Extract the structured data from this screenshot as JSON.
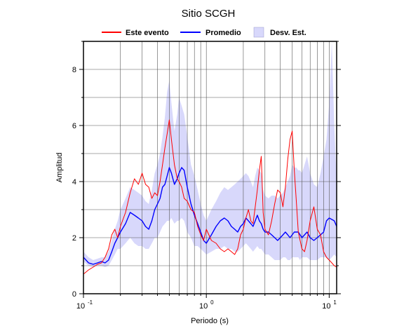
{
  "chart_data": {
    "type": "line",
    "title": "Sitio SCGH",
    "xlabel": "Periodo (s)",
    "ylabel": "Amplitud",
    "x_scale": "log",
    "xlim": [
      0.1,
      11.5
    ],
    "ylim": [
      0,
      9
    ],
    "grid": true,
    "legend_position": "top",
    "x_ticks": [
      {
        "base": "10",
        "exp": "-1",
        "value": 0.1
      },
      {
        "base": "10",
        "exp": "0",
        "value": 1
      },
      {
        "base": "10",
        "exp": "1",
        "value": 10
      }
    ],
    "y_ticks": [
      "0",
      "2",
      "4",
      "6",
      "8"
    ],
    "series": [
      {
        "name": "Este evento",
        "color": "#ff0000",
        "x": [
          0.1,
          0.11,
          0.12,
          0.13,
          0.14,
          0.15,
          0.16,
          0.17,
          0.18,
          0.19,
          0.2,
          0.22,
          0.24,
          0.26,
          0.28,
          0.3,
          0.32,
          0.34,
          0.36,
          0.38,
          0.4,
          0.42,
          0.44,
          0.46,
          0.48,
          0.5,
          0.52,
          0.55,
          0.58,
          0.6,
          0.63,
          0.66,
          0.7,
          0.75,
          0.8,
          0.85,
          0.9,
          0.95,
          1.0,
          1.1,
          1.2,
          1.3,
          1.4,
          1.5,
          1.6,
          1.7,
          1.8,
          1.9,
          2.0,
          2.1,
          2.2,
          2.3,
          2.4,
          2.5,
          2.6,
          2.7,
          2.8,
          2.9,
          3.0,
          3.2,
          3.4,
          3.6,
          3.8,
          4.0,
          4.2,
          4.4,
          4.6,
          4.8,
          5.0,
          5.2,
          5.4,
          5.6,
          5.8,
          6.0,
          6.3,
          6.6,
          7.0,
          7.5,
          8.0,
          8.5,
          9.0,
          9.5,
          10.0,
          10.5,
          11.0,
          11.5
        ],
        "y": [
          0.7,
          0.85,
          0.95,
          1.05,
          1.1,
          1.3,
          1.6,
          2.1,
          2.3,
          2.0,
          2.4,
          2.9,
          3.6,
          4.1,
          3.9,
          4.3,
          3.9,
          3.8,
          3.4,
          3.6,
          3.5,
          4.0,
          4.6,
          5.2,
          5.7,
          6.2,
          5.5,
          4.6,
          4.1,
          4.0,
          3.8,
          3.4,
          3.3,
          3.0,
          2.9,
          2.4,
          2.1,
          1.9,
          2.3,
          1.9,
          1.8,
          1.6,
          1.5,
          1.6,
          1.5,
          1.4,
          1.6,
          2.1,
          2.3,
          2.7,
          3.0,
          2.6,
          2.5,
          3.1,
          3.7,
          4.4,
          4.9,
          2.9,
          2.3,
          2.1,
          2.6,
          3.2,
          3.7,
          3.6,
          3.1,
          3.8,
          4.8,
          5.5,
          5.8,
          4.4,
          3.3,
          2.2,
          1.9,
          1.6,
          1.5,
          1.9,
          2.6,
          3.1,
          2.3,
          2.1,
          1.5,
          1.3,
          1.2,
          1.1,
          1.0,
          0.95
        ]
      },
      {
        "name": "Promedio",
        "color": "#0000ff",
        "x": [
          0.1,
          0.11,
          0.12,
          0.13,
          0.14,
          0.15,
          0.16,
          0.17,
          0.18,
          0.19,
          0.2,
          0.22,
          0.24,
          0.26,
          0.28,
          0.3,
          0.32,
          0.34,
          0.36,
          0.38,
          0.4,
          0.42,
          0.44,
          0.46,
          0.48,
          0.5,
          0.52,
          0.55,
          0.58,
          0.6,
          0.63,
          0.66,
          0.7,
          0.75,
          0.8,
          0.85,
          0.9,
          0.95,
          1.0,
          1.1,
          1.2,
          1.3,
          1.4,
          1.5,
          1.6,
          1.7,
          1.8,
          1.9,
          2.0,
          2.1,
          2.2,
          2.3,
          2.4,
          2.5,
          2.6,
          2.7,
          2.8,
          2.9,
          3.0,
          3.2,
          3.4,
          3.6,
          3.8,
          4.0,
          4.2,
          4.4,
          4.6,
          4.8,
          5.0,
          5.2,
          5.4,
          5.6,
          5.8,
          6.0,
          6.3,
          6.6,
          7.0,
          7.5,
          8.0,
          8.5,
          9.0,
          9.5,
          10.0,
          10.5,
          11.0,
          11.5
        ],
        "y": [
          1.3,
          1.1,
          1.05,
          1.1,
          1.15,
          1.1,
          1.2,
          1.5,
          1.8,
          2.0,
          2.2,
          2.5,
          2.9,
          2.8,
          2.7,
          2.6,
          2.4,
          2.3,
          2.6,
          3.0,
          3.2,
          3.4,
          3.8,
          3.9,
          4.2,
          4.5,
          4.3,
          3.9,
          4.1,
          4.3,
          4.5,
          4.4,
          3.8,
          3.2,
          2.8,
          2.5,
          2.2,
          1.9,
          1.8,
          2.1,
          2.4,
          2.6,
          2.7,
          2.6,
          2.4,
          2.3,
          2.2,
          2.4,
          2.5,
          2.7,
          2.6,
          2.5,
          2.4,
          2.6,
          2.8,
          2.6,
          2.5,
          2.3,
          2.2,
          2.2,
          2.1,
          2.0,
          1.9,
          2.0,
          2.1,
          2.2,
          2.1,
          2.0,
          2.1,
          2.2,
          2.2,
          2.2,
          2.1,
          2.0,
          2.1,
          2.2,
          2.0,
          1.9,
          2.0,
          2.1,
          2.2,
          2.6,
          2.7,
          2.65,
          2.6,
          2.4
        ]
      }
    ],
    "band": {
      "name": "Desv. Est.",
      "fill": "#d8d8fb",
      "x": [
        0.1,
        0.11,
        0.12,
        0.13,
        0.14,
        0.15,
        0.16,
        0.17,
        0.18,
        0.19,
        0.2,
        0.22,
        0.24,
        0.26,
        0.28,
        0.3,
        0.32,
        0.34,
        0.36,
        0.38,
        0.4,
        0.42,
        0.44,
        0.46,
        0.48,
        0.5,
        0.52,
        0.55,
        0.58,
        0.6,
        0.63,
        0.66,
        0.7,
        0.75,
        0.8,
        0.85,
        0.9,
        0.95,
        1.0,
        1.1,
        1.2,
        1.3,
        1.4,
        1.5,
        1.6,
        1.7,
        1.8,
        1.9,
        2.0,
        2.1,
        2.2,
        2.3,
        2.4,
        2.5,
        2.6,
        2.7,
        2.8,
        2.9,
        3.0,
        3.2,
        3.4,
        3.6,
        3.8,
        4.0,
        4.2,
        4.4,
        4.6,
        4.8,
        5.0,
        5.2,
        5.4,
        5.6,
        5.8,
        6.0,
        6.3,
        6.6,
        7.0,
        7.5,
        8.0,
        8.5,
        9.0,
        9.5,
        10.0,
        10.5,
        11.0,
        11.5
      ],
      "lower": [
        1.15,
        1.0,
        0.95,
        1.0,
        1.0,
        0.95,
        1.0,
        1.2,
        1.4,
        1.6,
        1.6,
        1.8,
        2.0,
        1.8,
        1.7,
        1.7,
        1.6,
        1.6,
        1.8,
        2.0,
        2.0,
        2.2,
        2.4,
        2.5,
        2.6,
        2.6,
        2.7,
        2.5,
        2.6,
        2.6,
        2.7,
        2.6,
        2.2,
        2.0,
        1.7,
        1.7,
        1.6,
        1.5,
        1.4,
        1.5,
        1.6,
        1.6,
        1.7,
        1.6,
        1.6,
        1.5,
        1.5,
        1.6,
        1.7,
        1.8,
        1.7,
        1.6,
        1.5,
        1.6,
        1.7,
        1.6,
        1.6,
        1.5,
        1.4,
        1.4,
        1.3,
        1.2,
        1.2,
        1.2,
        1.3,
        1.3,
        1.2,
        1.2,
        1.3,
        1.3,
        1.3,
        1.3,
        1.2,
        1.3,
        1.3,
        1.3,
        1.2,
        1.2,
        1.2,
        1.3,
        1.3,
        1.3,
        1.2,
        1.3,
        1.4,
        1.3
      ],
      "upper": [
        1.5,
        1.3,
        1.2,
        1.25,
        1.3,
        1.3,
        1.5,
        1.9,
        2.3,
        2.6,
        3.0,
        3.4,
        3.8,
        3.7,
        3.6,
        3.5,
        3.3,
        3.2,
        3.7,
        4.3,
        4.6,
        5.0,
        5.6,
        6.3,
        7.2,
        7.6,
        6.8,
        5.8,
        6.4,
        7.0,
        6.7,
        6.4,
        5.6,
        4.6,
        4.2,
        3.7,
        3.2,
        2.8,
        2.6,
        3.0,
        3.3,
        3.6,
        3.8,
        3.7,
        3.8,
        3.9,
        4.0,
        4.1,
        4.2,
        4.3,
        4.2,
        4.0,
        3.8,
        4.2,
        4.5,
        4.4,
        4.3,
        3.7,
        3.5,
        3.4,
        3.5,
        3.5,
        3.4,
        3.5,
        3.6,
        3.8,
        4.0,
        4.2,
        4.6,
        4.5,
        4.5,
        4.4,
        4.4,
        4.3,
        4.6,
        4.9,
        4.3,
        3.9,
        3.8,
        4.3,
        4.9,
        5.5,
        6.8,
        9.0,
        6.0,
        4.0
      ]
    }
  }
}
